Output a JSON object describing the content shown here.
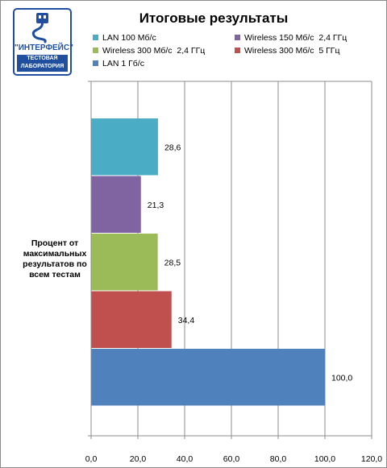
{
  "logo": {
    "brand": "\"ИНТЕРФЕЙС\"",
    "line1": "ТЕСТОВАЯ",
    "line2": "ЛАБОРАТОРИЯ"
  },
  "chart_data": {
    "type": "bar",
    "orientation": "horizontal",
    "title": "Итоговые результаты",
    "category_label": "Процент от максимальных результатов по всем тестам",
    "xlim": [
      0,
      120
    ],
    "xticks": [
      "0,0",
      "20,0",
      "40,0",
      "60,0",
      "80,0",
      "100,0",
      "120,0"
    ],
    "grid": true,
    "legend_position": "top",
    "series": [
      {
        "name": "LAN 100 Мб/с",
        "value": 28.6,
        "label": "28,6",
        "color": "#4bacc6"
      },
      {
        "name": "Wireless 150 Мб/с  2,4 ГГц",
        "value": 21.3,
        "label": "21,3",
        "color": "#8064a2"
      },
      {
        "name": "Wireless 300 Мб/с  2,4 ГГц",
        "value": 28.5,
        "label": "28,5",
        "color": "#9bbb59"
      },
      {
        "name": "Wireless 300 Мб/с  5 ГГц",
        "value": 34.4,
        "label": "34,4",
        "color": "#c0504d"
      },
      {
        "name": "LAN 1 Гб/с",
        "value": 100.0,
        "label": "100,0",
        "color": "#4f81bd"
      }
    ]
  }
}
